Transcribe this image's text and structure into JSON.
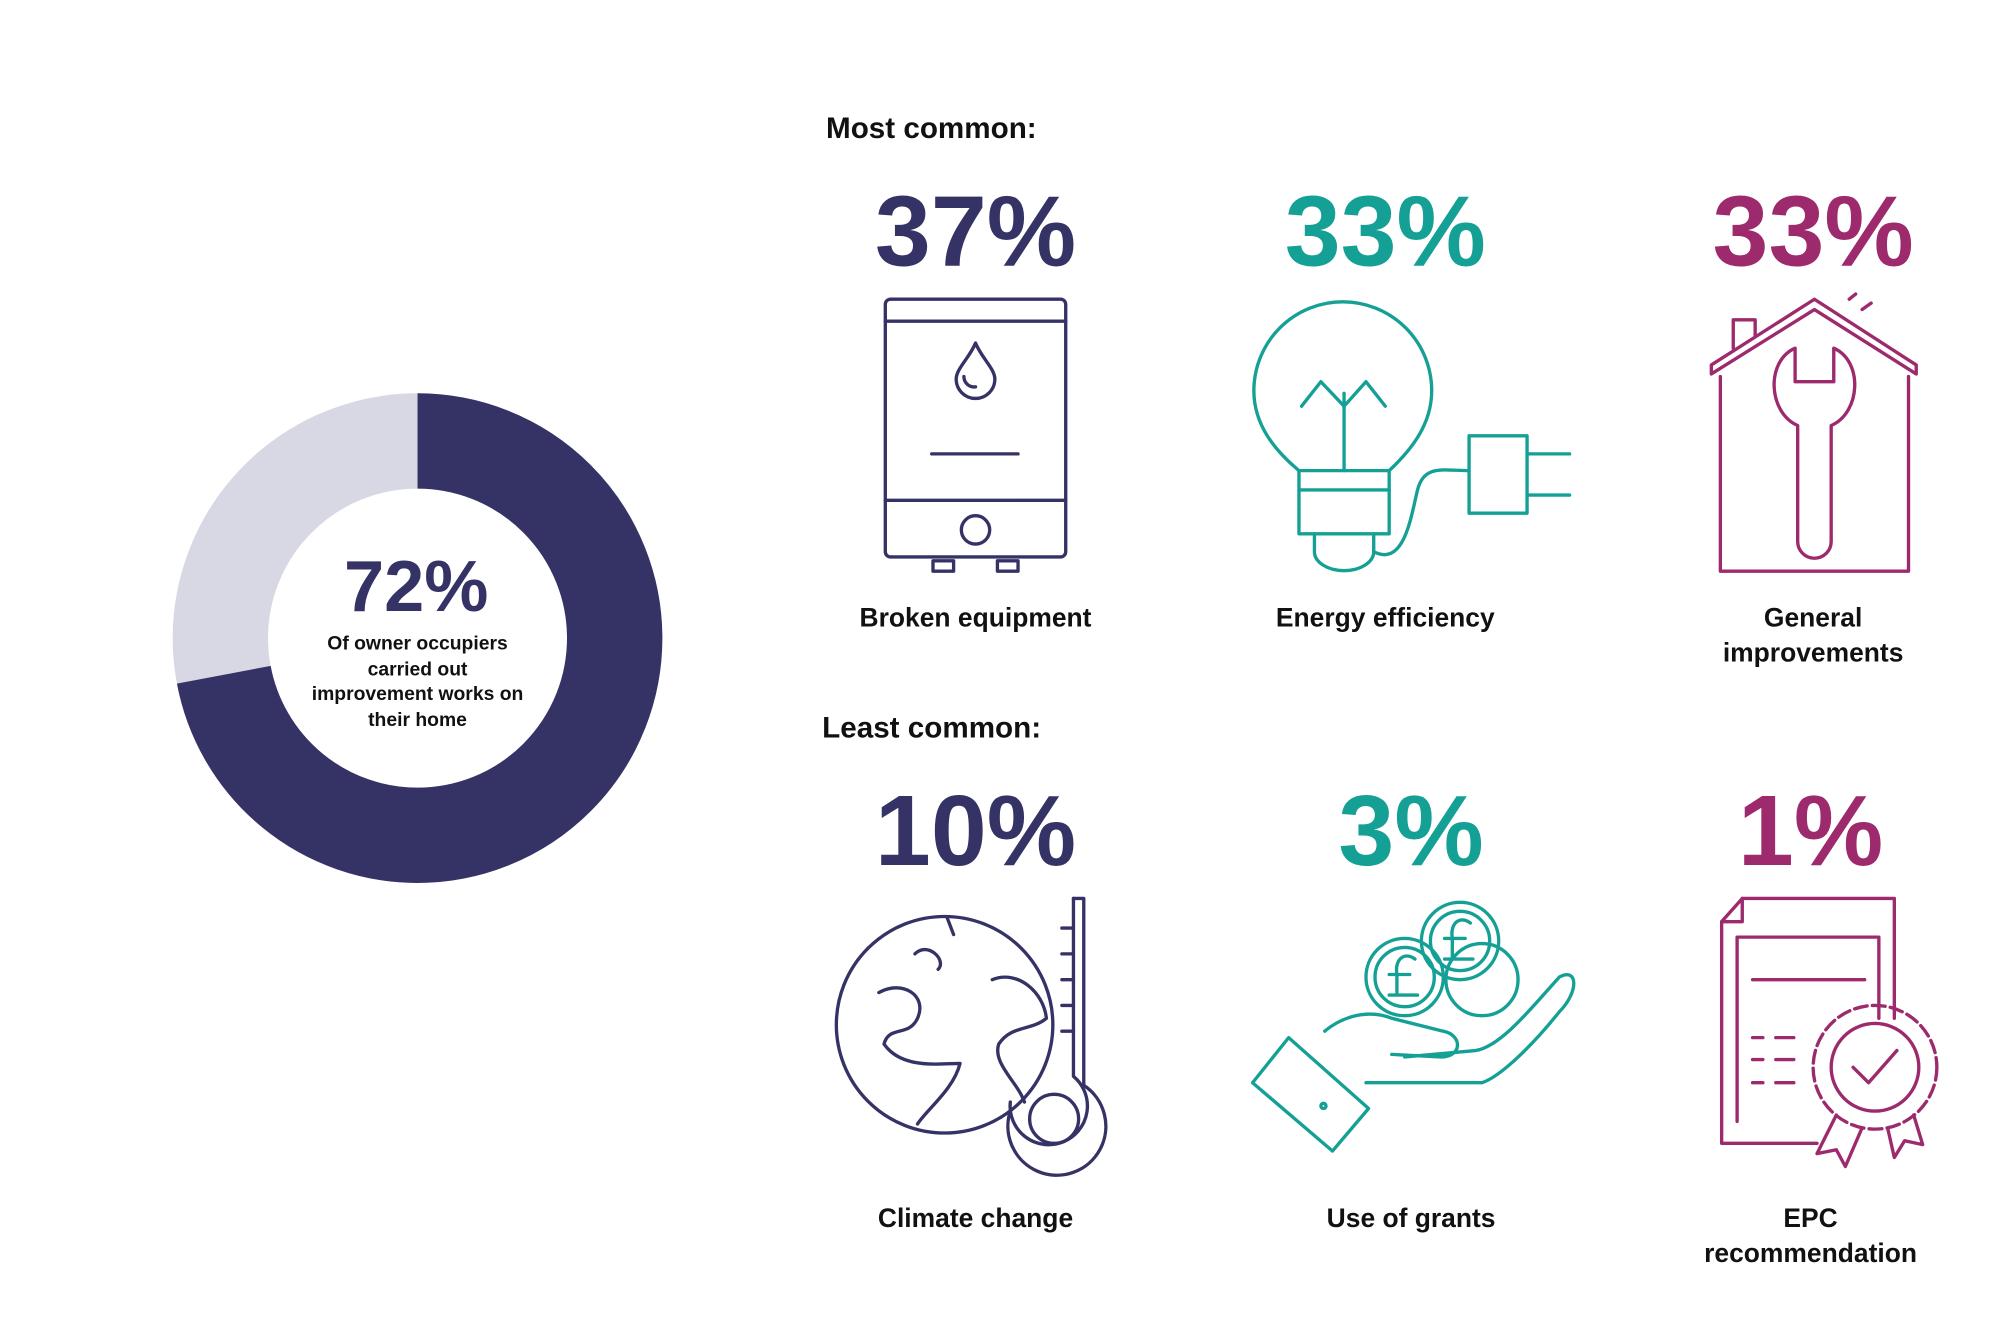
{
  "chart_data": {
    "type": "pie",
    "values": [
      72
    ],
    "value_labels": [
      "72%"
    ],
    "color": "#353366",
    "track_color": "#d8d8e4",
    "caption": "Of owner occupiers carried out improvement works on their home"
  },
  "sections": [
    {
      "heading": "Most common:",
      "items": [
        {
          "value": "37%",
          "label": "Broken equipment",
          "color": "#353366"
        },
        {
          "value": "33%",
          "label": "Energy efficiency",
          "color": "#15a096"
        },
        {
          "value": "33%",
          "label": "General improvements",
          "color": "#9c2a6c"
        }
      ]
    },
    {
      "heading": "Least common:",
      "items": [
        {
          "value": "10%",
          "label": "Climate change",
          "color": "#353366"
        },
        {
          "value": "3%",
          "label": "Use of grants",
          "color": "#15a096"
        },
        {
          "value": "1%",
          "label": "EPC recommendation",
          "color": "#9c2a6c"
        }
      ]
    }
  ]
}
